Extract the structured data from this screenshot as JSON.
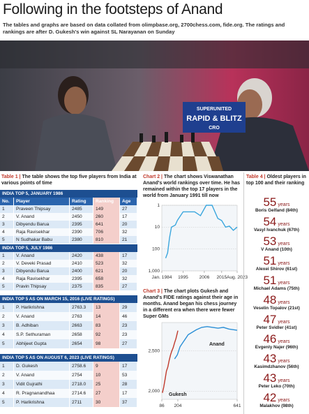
{
  "header": {
    "title": "Following in the footsteps of Anand",
    "subtitle": "The tables and graphs are based on data collated from olimpbase.org, 2700chess.com, fide.org. The ratings and rankings are after D. Gukesh's win against SL Narayanan on Sunday"
  },
  "photo": {
    "banner": [
      "SUPERUNITED",
      "RAPID & BLITZ",
      "CRO"
    ]
  },
  "table1": {
    "label": "Table 1 |",
    "caption": "The table shows the top five players from India at various points of time",
    "columns": [
      "No.",
      "Player",
      "Rating",
      "Ranking",
      "Age"
    ],
    "sections": [
      {
        "title": "INDIA TOP 5, JANUARY 1986",
        "rows": [
          [
            "1",
            "Praveen Thipsay",
            "2485",
            "149",
            "27"
          ],
          [
            "2",
            "V. Anand",
            "2450",
            "260",
            "17"
          ],
          [
            "3",
            "Dibyendu Barua",
            "2395",
            "641",
            "20"
          ],
          [
            "4",
            "Raja Ravisekhar",
            "2390",
            "706",
            "32"
          ],
          [
            "5",
            "N Sudhakar Babu",
            "2380",
            "810",
            "21"
          ]
        ]
      },
      {
        "title": "INDIA TOP 5, JULY 1986",
        "rows": [
          [
            "1",
            "V. Anand",
            "2420",
            "438",
            "17"
          ],
          [
            "2",
            "V. Deveki Prasad",
            "2410",
            "523",
            "32"
          ],
          [
            "3",
            "Dibyendu Barua",
            "2400",
            "621",
            "20"
          ],
          [
            "4",
            "Raja Ravisekhar",
            "2395",
            "658",
            "32"
          ],
          [
            "5",
            "Pravin Thipsay",
            "2375",
            "835",
            "27"
          ]
        ]
      },
      {
        "title": "INDIA TOP 5 AS ON MARCH 15, 2016 (LIVE RATINGS)",
        "rows": [
          [
            "1",
            "P. Harikrishna",
            "2763.3",
            "13",
            "29"
          ],
          [
            "2",
            "V. Anand",
            "2763",
            "14",
            "46"
          ],
          [
            "3",
            "B. Adhiban",
            "2663",
            "83",
            "23"
          ],
          [
            "4",
            "S.P. Sethuraman",
            "2658",
            "92",
            "23"
          ],
          [
            "5",
            "Abhijeet Gupta",
            "2654",
            "98",
            "27"
          ]
        ]
      },
      {
        "title": "INDIA TOP 5 AS ON AUGUST 6, 2023 (LIVE RATINGS)",
        "rows": [
          [
            "1",
            "D. Gukesh",
            "2758.6",
            "9",
            "17"
          ],
          [
            "2",
            "V. Anand",
            "2754",
            "10",
            "53"
          ],
          [
            "3",
            "Vidit Gujrathi",
            "2718.0",
            "25",
            "28"
          ],
          [
            "4",
            "R. Pragnanandhaa",
            "2714.6",
            "27",
            "17"
          ],
          [
            "5",
            "P. Harikrishna",
            "2711",
            "30",
            "37"
          ]
        ]
      }
    ]
  },
  "chart2": {
    "type": "line",
    "label": "Chart 2 |",
    "caption": "The chart shows Viswanathan Anand's world rankings over time. He has remained within the top 17 players in the world from January 1991 till now",
    "x": [
      1986,
      1987,
      1988,
      1989,
      1990,
      1991,
      1992,
      1995,
      1998,
      2001,
      2004,
      2007,
      2010,
      2013,
      2015,
      2017,
      2019,
      2021,
      2023
    ],
    "values": [
      260,
      150,
      30,
      10,
      9,
      8,
      5,
      2,
      2,
      2,
      3,
      1,
      1,
      4,
      5,
      10,
      9,
      14,
      10
    ],
    "color": "#3aa6dd",
    "ylog": true,
    "yreverse": true,
    "xlim": [
      1984,
      2023
    ],
    "ylim": [
      1,
      1000
    ],
    "xticks": [
      {
        "value": 1984,
        "label": "Jan. 1984"
      },
      1995,
      2006,
      2015,
      {
        "value": 2023,
        "label": "Aug. 2023"
      }
    ],
    "yticks": [
      1,
      10,
      100,
      {
        "value": 1000,
        "label": "1,000"
      }
    ],
    "grid": true
  },
  "chart3": {
    "type": "line",
    "label": "Chart 3 |",
    "caption": "The chart plots Gukesh and Anand's FIDE ratings against their age in months. Anand began his chess journey in a different era when there were fewer Super GMs",
    "series": [
      {
        "name": "Gukesh",
        "color": "#c0392b",
        "x": [
          90,
          100,
          110,
          120,
          130,
          140,
          150,
          160,
          170,
          180,
          190,
          200,
          204
        ],
        "values": [
          1980,
          2050,
          2150,
          2250,
          2300,
          2380,
          2450,
          2500,
          2540,
          2600,
          2650,
          2720,
          2750
        ]
      },
      {
        "name": "Anand",
        "color": "#2b8fd6",
        "x": [
          180,
          200,
          220,
          240,
          260,
          280,
          300,
          340,
          380,
          420,
          460,
          500,
          540,
          580,
          620,
          641
        ],
        "values": [
          2400,
          2450,
          2550,
          2600,
          2650,
          2700,
          2720,
          2760,
          2790,
          2800,
          2790,
          2780,
          2790,
          2770,
          2760,
          2754
        ]
      }
    ],
    "xlim": [
      86,
      641
    ],
    "ylim": [
      1900,
      2850
    ],
    "xticks": [
      86,
      204,
      641
    ],
    "yticks": [
      {
        "value": 2000,
        "label": "2,000"
      },
      {
        "value": 2500,
        "label": "2,500"
      }
    ],
    "grid": true
  },
  "table4": {
    "label": "Table 4 |",
    "caption": "Oldest players in top 100 and their ranking",
    "players": [
      {
        "age": 55,
        "unit": "years",
        "name": "Boris Gelfand (84th)"
      },
      {
        "age": 54,
        "unit": "years",
        "name": "Vasyl Ivanchuk (67th)"
      },
      {
        "age": 53,
        "unit": "years",
        "name": "V Anand (10th)"
      },
      {
        "age": 51,
        "unit": "years",
        "name": "Alexei Shirov (61st)"
      },
      {
        "age": 51,
        "unit": "years",
        "name": "Michael Adams (75th)"
      },
      {
        "age": 48,
        "unit": "years",
        "name": "Veselin Topalov (21st)"
      },
      {
        "age": 47,
        "unit": "years",
        "name": "Peter Svidler (41st)"
      },
      {
        "age": 46,
        "unit": "years",
        "name": "Evgenly Najer (96th)"
      },
      {
        "age": 43,
        "unit": "years",
        "name": "Kasimdzhanov (56th)"
      },
      {
        "age": 43,
        "unit": "years",
        "name": "Peter Leko (70th)"
      },
      {
        "age": 42,
        "unit": "years",
        "name": "Malakhov (98th)"
      }
    ]
  }
}
